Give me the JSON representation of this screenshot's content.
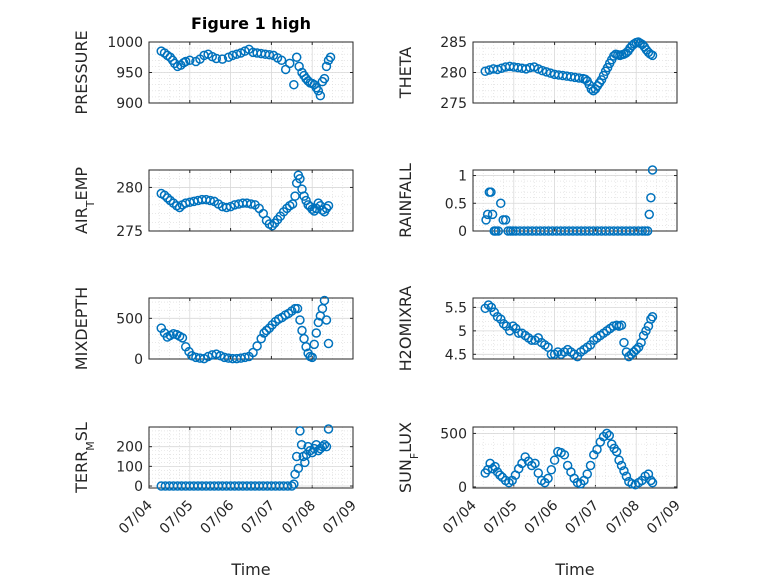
{
  "chart_data": [
    {
      "type": "scatter",
      "ylabel": "PRESSURE",
      "title": "Figure 1 high",
      "xlim": [
        0,
        5
      ],
      "ylim": [
        900,
        1000
      ],
      "yticks": [
        900,
        950,
        1000
      ],
      "xticks": [
        0,
        1,
        2,
        3,
        4,
        5
      ],
      "xtick_labels": [],
      "xlabel": "",
      "x": [
        0.3,
        0.38,
        0.45,
        0.52,
        0.58,
        0.63,
        0.7,
        0.78,
        0.85,
        0.9,
        1.0,
        1.15,
        1.25,
        1.35,
        1.45,
        1.55,
        1.65,
        1.8,
        1.95,
        2.05,
        2.15,
        2.25,
        2.35,
        2.45,
        2.55,
        2.65,
        2.75,
        2.85,
        2.95,
        3.05,
        3.15,
        3.25,
        3.35,
        3.45,
        3.55,
        3.62,
        3.68,
        3.75,
        3.8,
        3.85,
        3.9,
        3.95,
        4.0,
        4.05,
        4.1,
        4.15,
        4.2,
        4.25,
        4.3,
        4.35,
        4.4,
        4.45
      ],
      "y": [
        985,
        982,
        978,
        975,
        970,
        965,
        960,
        962,
        966,
        968,
        970,
        968,
        972,
        978,
        980,
        976,
        973,
        972,
        975,
        978,
        980,
        982,
        985,
        988,
        983,
        982,
        981,
        980,
        979,
        978,
        974,
        970,
        955,
        965,
        930,
        975,
        960,
        950,
        945,
        940,
        936,
        933,
        932,
        930,
        925,
        920,
        912,
        935,
        940,
        960,
        970,
        975
      ]
    },
    {
      "type": "scatter",
      "ylabel": "THETA",
      "xlim": [
        0,
        5
      ],
      "ylim": [
        275,
        285
      ],
      "yticks": [
        275,
        280,
        285
      ],
      "xticks": [
        0,
        1,
        2,
        3,
        4,
        5
      ],
      "xtick_labels": [],
      "xlabel": "",
      "x": [
        0.3,
        0.4,
        0.5,
        0.6,
        0.7,
        0.8,
        0.9,
        1.0,
        1.1,
        1.2,
        1.3,
        1.4,
        1.5,
        1.6,
        1.7,
        1.8,
        1.9,
        2.0,
        2.1,
        2.2,
        2.3,
        2.4,
        2.5,
        2.6,
        2.7,
        2.75,
        2.8,
        2.85,
        2.9,
        2.95,
        3.0,
        3.05,
        3.1,
        3.15,
        3.2,
        3.25,
        3.3,
        3.35,
        3.4,
        3.45,
        3.5,
        3.55,
        3.6,
        3.65,
        3.7,
        3.75,
        3.8,
        3.85,
        3.9,
        3.95,
        4.0,
        4.05,
        4.1,
        4.15,
        4.2,
        4.25,
        4.3,
        4.35,
        4.4
      ],
      "y": [
        280.2,
        280.4,
        280.6,
        280.5,
        280.7,
        280.9,
        281.0,
        280.9,
        280.8,
        280.7,
        280.6,
        280.8,
        280.9,
        280.6,
        280.3,
        280.1,
        279.9,
        279.7,
        279.6,
        279.5,
        279.4,
        279.3,
        279.2,
        279.1,
        279.0,
        278.9,
        278.6,
        278.0,
        277.3,
        277.0,
        277.3,
        277.8,
        278.3,
        278.8,
        279.5,
        280.2,
        280.8,
        281.5,
        282.1,
        282.7,
        283.0,
        282.9,
        282.8,
        282.9,
        283.0,
        283.2,
        283.5,
        284.0,
        284.4,
        284.7,
        284.9,
        285.0,
        284.8,
        284.6,
        284.2,
        283.7,
        283.3,
        283.0,
        282.8
      ]
    },
    {
      "type": "scatter",
      "ylabel": "AIR_TEMP",
      "xlim": [
        0,
        5
      ],
      "ylim": [
        275,
        282
      ],
      "yticks": [
        275,
        280
      ],
      "xticks": [
        0,
        1,
        2,
        3,
        4,
        5
      ],
      "xtick_labels": [],
      "xlabel": "",
      "x": [
        0.3,
        0.38,
        0.45,
        0.52,
        0.6,
        0.68,
        0.75,
        0.82,
        0.9,
        1.0,
        1.1,
        1.2,
        1.3,
        1.4,
        1.5,
        1.6,
        1.7,
        1.8,
        1.9,
        2.0,
        2.1,
        2.2,
        2.3,
        2.4,
        2.5,
        2.6,
        2.7,
        2.8,
        2.88,
        2.95,
        3.02,
        3.08,
        3.15,
        3.22,
        3.3,
        3.38,
        3.45,
        3.52,
        3.58,
        3.62,
        3.66,
        3.7,
        3.75,
        3.8,
        3.85,
        3.9,
        3.95,
        4.0,
        4.05,
        4.1,
        4.15,
        4.2,
        4.25,
        4.3,
        4.35,
        4.4
      ],
      "y": [
        279.3,
        279.1,
        278.8,
        278.5,
        278.2,
        277.9,
        277.7,
        278.0,
        278.2,
        278.3,
        278.4,
        278.5,
        278.6,
        278.6,
        278.5,
        278.4,
        278.1,
        277.8,
        277.7,
        277.8,
        278.0,
        278.1,
        278.2,
        278.2,
        278.1,
        278.0,
        277.6,
        277.0,
        276.2,
        275.8,
        275.6,
        275.9,
        276.3,
        276.7,
        277.2,
        277.6,
        277.9,
        278.1,
        279.0,
        280.5,
        281.4,
        281.0,
        279.8,
        279.0,
        278.5,
        278.0,
        277.8,
        277.5,
        277.3,
        277.6,
        278.2,
        277.9,
        277.4,
        277.2,
        277.6,
        277.9
      ]
    },
    {
      "type": "scatter",
      "ylabel": "RAINFALL",
      "xlim": [
        0,
        5
      ],
      "ylim": [
        0,
        1.1
      ],
      "yticks": [
        0,
        0.5,
        1
      ],
      "xticks": [
        0,
        1,
        2,
        3,
        4,
        5
      ],
      "xtick_labels": [],
      "xlabel": "",
      "x": [
        0.32,
        0.36,
        0.4,
        0.44,
        0.48,
        0.52,
        0.56,
        0.62,
        0.68,
        0.74,
        0.8,
        0.86,
        0.92,
        0.98,
        1.05,
        1.15,
        1.25,
        1.35,
        1.45,
        1.55,
        1.65,
        1.75,
        1.85,
        1.95,
        2.05,
        2.15,
        2.25,
        2.35,
        2.45,
        2.55,
        2.65,
        2.75,
        2.85,
        2.95,
        3.05,
        3.15,
        3.25,
        3.35,
        3.45,
        3.55,
        3.65,
        3.75,
        3.85,
        3.95,
        4.05,
        4.15,
        4.22,
        4.28,
        4.32,
        4.36,
        4.4
      ],
      "y": [
        0.2,
        0.3,
        0.7,
        0.7,
        0.3,
        0.0,
        0.0,
        0.0,
        0.5,
        0.2,
        0.2,
        0.0,
        0.0,
        0.0,
        0.0,
        0.0,
        0.0,
        0.0,
        0.0,
        0.0,
        0.0,
        0.0,
        0.0,
        0.0,
        0.0,
        0.0,
        0.0,
        0.0,
        0.0,
        0.0,
        0.0,
        0.0,
        0.0,
        0.0,
        0.0,
        0.0,
        0.0,
        0.0,
        0.0,
        0.0,
        0.0,
        0.0,
        0.0,
        0.0,
        0.0,
        0.0,
        0.0,
        0.0,
        0.3,
        0.6,
        1.1
      ]
    },
    {
      "type": "scatter",
      "ylabel": "MIXDEPTH",
      "xlim": [
        0,
        5
      ],
      "ylim": [
        0,
        750
      ],
      "yticks": [
        0,
        500
      ],
      "xticks": [
        0,
        1,
        2,
        3,
        4,
        5
      ],
      "xtick_labels": [],
      "xlabel": "",
      "x": [
        0.3,
        0.38,
        0.45,
        0.52,
        0.6,
        0.68,
        0.75,
        0.82,
        0.9,
        0.98,
        1.05,
        1.15,
        1.25,
        1.35,
        1.45,
        1.55,
        1.65,
        1.75,
        1.85,
        1.95,
        2.05,
        2.15,
        2.25,
        2.35,
        2.45,
        2.55,
        2.65,
        2.75,
        2.82,
        2.88,
        2.95,
        3.02,
        3.1,
        3.18,
        3.26,
        3.34,
        3.42,
        3.5,
        3.58,
        3.64,
        3.7,
        3.75,
        3.8,
        3.85,
        3.9,
        3.95,
        4.0,
        4.05,
        4.1,
        4.15,
        4.2,
        4.25,
        4.3,
        4.35,
        4.4
      ],
      "y": [
        380,
        320,
        270,
        290,
        310,
        300,
        280,
        260,
        150,
        90,
        40,
        20,
        10,
        5,
        30,
        50,
        60,
        40,
        20,
        10,
        5,
        5,
        10,
        20,
        30,
        80,
        160,
        250,
        320,
        350,
        380,
        420,
        460,
        490,
        510,
        540,
        560,
        590,
        620,
        620,
        480,
        350,
        250,
        150,
        70,
        30,
        20,
        180,
        320,
        450,
        530,
        620,
        720,
        480,
        190
      ]
    },
    {
      "type": "scatter",
      "ylabel": "H2OMIXRA",
      "xlim": [
        0,
        5
      ],
      "ylim": [
        4.4,
        5.7
      ],
      "yticks": [
        4.5,
        5,
        5.5
      ],
      "xticks": [
        0,
        1,
        2,
        3,
        4,
        5
      ],
      "xtick_labels": [],
      "xlabel": "",
      "x": [
        0.3,
        0.38,
        0.45,
        0.52,
        0.6,
        0.68,
        0.75,
        0.82,
        0.9,
        0.98,
        1.05,
        1.12,
        1.2,
        1.28,
        1.36,
        1.44,
        1.52,
        1.6,
        1.68,
        1.76,
        1.84,
        1.92,
        2.0,
        2.08,
        2.16,
        2.24,
        2.32,
        2.4,
        2.48,
        2.56,
        2.64,
        2.72,
        2.8,
        2.88,
        2.96,
        3.04,
        3.12,
        3.2,
        3.28,
        3.36,
        3.44,
        3.52,
        3.58,
        3.64,
        3.7,
        3.76,
        3.82,
        3.88,
        3.94,
        4.0,
        4.06,
        4.12,
        4.18,
        4.24,
        4.3,
        4.36,
        4.4
      ],
      "y": [
        5.48,
        5.55,
        5.5,
        5.4,
        5.3,
        5.25,
        5.15,
        5.1,
        5.0,
        5.1,
        5.05,
        4.95,
        4.95,
        4.9,
        4.85,
        4.8,
        4.8,
        4.85,
        4.75,
        4.7,
        4.65,
        4.5,
        4.5,
        4.55,
        4.5,
        4.55,
        4.6,
        4.55,
        4.5,
        4.45,
        4.55,
        4.6,
        4.65,
        4.7,
        4.8,
        4.85,
        4.9,
        4.95,
        5.0,
        5.05,
        5.1,
        5.12,
        5.1,
        5.12,
        4.75,
        4.55,
        4.45,
        4.5,
        4.55,
        4.6,
        4.65,
        4.75,
        4.9,
        5.0,
        5.1,
        5.25,
        5.3
      ]
    },
    {
      "type": "scatter",
      "ylabel": "TERR_MSL",
      "xlim": [
        0,
        5
      ],
      "ylim": [
        -10,
        300
      ],
      "yticks": [
        0,
        100,
        200
      ],
      "xticks": [
        0,
        1,
        2,
        3,
        4,
        5
      ],
      "xtick_labels": [
        "07/04",
        "07/05",
        "07/06",
        "07/07",
        "07/08",
        "07/09"
      ],
      "xlabel": "Time",
      "x": [
        0.3,
        0.4,
        0.5,
        0.6,
        0.7,
        0.8,
        0.9,
        1.0,
        1.1,
        1.2,
        1.3,
        1.4,
        1.5,
        1.6,
        1.7,
        1.8,
        1.9,
        2.0,
        2.1,
        2.2,
        2.3,
        2.4,
        2.5,
        2.6,
        2.7,
        2.8,
        2.9,
        3.0,
        3.1,
        3.2,
        3.3,
        3.4,
        3.5,
        3.55,
        3.58,
        3.62,
        3.66,
        3.7,
        3.74,
        3.78,
        3.82,
        3.86,
        3.9,
        3.95,
        4.0,
        4.05,
        4.1,
        4.15,
        4.2,
        4.25,
        4.3,
        4.35,
        4.4
      ],
      "y": [
        0,
        0,
        0,
        0,
        0,
        0,
        0,
        0,
        0,
        0,
        0,
        0,
        0,
        0,
        0,
        0,
        0,
        0,
        0,
        0,
        0,
        0,
        0,
        0,
        0,
        0,
        0,
        0,
        0,
        0,
        0,
        0,
        0,
        10,
        60,
        150,
        90,
        280,
        210,
        150,
        120,
        160,
        200,
        180,
        170,
        190,
        210,
        180,
        190,
        200,
        210,
        200,
        290
      ]
    },
    {
      "type": "scatter",
      "ylabel": "SUN_FLUX",
      "xlim": [
        0,
        5
      ],
      "ylim": [
        -10,
        560
      ],
      "yticks": [
        0,
        500
      ],
      "xticks": [
        0,
        1,
        2,
        3,
        4,
        5
      ],
      "xtick_labels": [
        "07/04",
        "07/05",
        "07/06",
        "07/07",
        "07/08",
        "07/09"
      ],
      "xlabel": "Time",
      "x": [
        0.3,
        0.36,
        0.42,
        0.48,
        0.54,
        0.6,
        0.66,
        0.72,
        0.8,
        0.88,
        0.96,
        1.04,
        1.12,
        1.2,
        1.28,
        1.36,
        1.44,
        1.52,
        1.6,
        1.68,
        1.76,
        1.84,
        1.92,
        2.0,
        2.08,
        2.16,
        2.24,
        2.32,
        2.4,
        2.48,
        2.56,
        2.64,
        2.72,
        2.8,
        2.88,
        2.96,
        3.04,
        3.12,
        3.2,
        3.28,
        3.34,
        3.4,
        3.46,
        3.52,
        3.58,
        3.64,
        3.7,
        3.76,
        3.82,
        3.9,
        3.98,
        4.06,
        4.14,
        4.22,
        4.3,
        4.36,
        4.4
      ],
      "y": [
        130,
        160,
        220,
        170,
        190,
        140,
        110,
        90,
        60,
        40,
        60,
        110,
        170,
        220,
        280,
        240,
        200,
        220,
        130,
        60,
        40,
        80,
        160,
        250,
        330,
        320,
        300,
        200,
        140,
        80,
        40,
        30,
        60,
        120,
        200,
        300,
        350,
        420,
        470,
        500,
        480,
        400,
        360,
        330,
        250,
        200,
        150,
        100,
        50,
        30,
        20,
        40,
        60,
        100,
        120,
        60,
        40
      ]
    }
  ],
  "colors": {
    "marker": "#0072BD",
    "axis": "#262626",
    "grid": "#d9d9d9"
  }
}
